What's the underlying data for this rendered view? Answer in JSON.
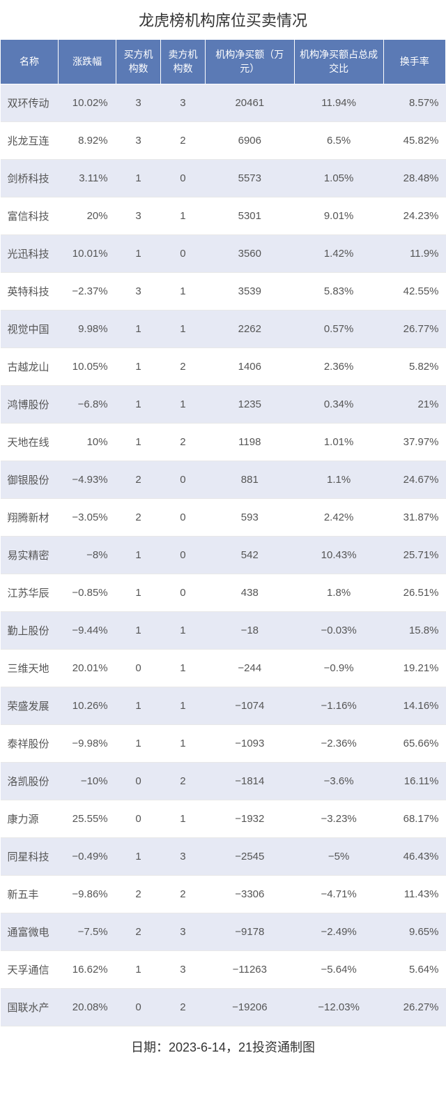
{
  "title": "龙虎榜机构席位买卖情况",
  "footer": "日期：2023-6-14，21投资通制图",
  "colors": {
    "header_bg": "#5b7ab5",
    "header_text": "#ffffff",
    "row_odd_bg": "#e6e9f4",
    "row_even_bg": "#ffffff",
    "cell_text": "#555555",
    "title_text": "#333333",
    "border": "#e8e8e8"
  },
  "table": {
    "columns": [
      {
        "key": "name",
        "label": "名称",
        "width": "13%",
        "align": "left"
      },
      {
        "key": "change",
        "label": "涨跌幅",
        "width": "13%",
        "align": "right"
      },
      {
        "key": "buyers",
        "label": "买方机构数",
        "width": "10%",
        "align": "center"
      },
      {
        "key": "sellers",
        "label": "卖方机构数",
        "width": "10%",
        "align": "center"
      },
      {
        "key": "netbuy",
        "label": "机构净买额（万元）",
        "width": "20%",
        "align": "center"
      },
      {
        "key": "ratio",
        "label": "机构净买额占总成交比",
        "width": "20%",
        "align": "center"
      },
      {
        "key": "turnover",
        "label": "换手率",
        "width": "14%",
        "align": "right"
      }
    ],
    "rows": [
      {
        "name": "双环传动",
        "change": "10.02%",
        "buyers": "3",
        "sellers": "3",
        "netbuy": "20461",
        "ratio": "11.94%",
        "turnover": "8.57%"
      },
      {
        "name": "兆龙互连",
        "change": "8.92%",
        "buyers": "3",
        "sellers": "2",
        "netbuy": "6906",
        "ratio": "6.5%",
        "turnover": "45.82%"
      },
      {
        "name": "剑桥科技",
        "change": "3.11%",
        "buyers": "1",
        "sellers": "0",
        "netbuy": "5573",
        "ratio": "1.05%",
        "turnover": "28.48%"
      },
      {
        "name": "富信科技",
        "change": "20%",
        "buyers": "3",
        "sellers": "1",
        "netbuy": "5301",
        "ratio": "9.01%",
        "turnover": "24.23%"
      },
      {
        "name": "光迅科技",
        "change": "10.01%",
        "buyers": "1",
        "sellers": "0",
        "netbuy": "3560",
        "ratio": "1.42%",
        "turnover": "11.9%"
      },
      {
        "name": "英特科技",
        "change": "−2.37%",
        "buyers": "3",
        "sellers": "1",
        "netbuy": "3539",
        "ratio": "5.83%",
        "turnover": "42.55%"
      },
      {
        "name": "视觉中国",
        "change": "9.98%",
        "buyers": "1",
        "sellers": "1",
        "netbuy": "2262",
        "ratio": "0.57%",
        "turnover": "26.77%"
      },
      {
        "name": "古越龙山",
        "change": "10.05%",
        "buyers": "1",
        "sellers": "2",
        "netbuy": "1406",
        "ratio": "2.36%",
        "turnover": "5.82%"
      },
      {
        "name": "鸿博股份",
        "change": "−6.8%",
        "buyers": "1",
        "sellers": "1",
        "netbuy": "1235",
        "ratio": "0.34%",
        "turnover": "21%"
      },
      {
        "name": "天地在线",
        "change": "10%",
        "buyers": "1",
        "sellers": "2",
        "netbuy": "1198",
        "ratio": "1.01%",
        "turnover": "37.97%"
      },
      {
        "name": "御银股份",
        "change": "−4.93%",
        "buyers": "2",
        "sellers": "0",
        "netbuy": "881",
        "ratio": "1.1%",
        "turnover": "24.67%"
      },
      {
        "name": "翔腾新材",
        "change": "−3.05%",
        "buyers": "2",
        "sellers": "0",
        "netbuy": "593",
        "ratio": "2.42%",
        "turnover": "31.87%"
      },
      {
        "name": "易实精密",
        "change": "−8%",
        "buyers": "1",
        "sellers": "0",
        "netbuy": "542",
        "ratio": "10.43%",
        "turnover": "25.71%"
      },
      {
        "name": "江苏华辰",
        "change": "−0.85%",
        "buyers": "1",
        "sellers": "0",
        "netbuy": "438",
        "ratio": "1.8%",
        "turnover": "26.51%"
      },
      {
        "name": "勤上股份",
        "change": "−9.44%",
        "buyers": "1",
        "sellers": "1",
        "netbuy": "−18",
        "ratio": "−0.03%",
        "turnover": "15.8%"
      },
      {
        "name": "三维天地",
        "change": "20.01%",
        "buyers": "0",
        "sellers": "1",
        "netbuy": "−244",
        "ratio": "−0.9%",
        "turnover": "19.21%"
      },
      {
        "name": "荣盛发展",
        "change": "10.26%",
        "buyers": "1",
        "sellers": "1",
        "netbuy": "−1074",
        "ratio": "−1.16%",
        "turnover": "14.16%"
      },
      {
        "name": "泰祥股份",
        "change": "−9.98%",
        "buyers": "1",
        "sellers": "1",
        "netbuy": "−1093",
        "ratio": "−2.36%",
        "turnover": "65.66%"
      },
      {
        "name": "洛凯股份",
        "change": "−10%",
        "buyers": "0",
        "sellers": "2",
        "netbuy": "−1814",
        "ratio": "−3.6%",
        "turnover": "16.11%"
      },
      {
        "name": "康力源",
        "change": "25.55%",
        "buyers": "0",
        "sellers": "1",
        "netbuy": "−1932",
        "ratio": "−3.23%",
        "turnover": "68.17%"
      },
      {
        "name": "同星科技",
        "change": "−0.49%",
        "buyers": "1",
        "sellers": "3",
        "netbuy": "−2545",
        "ratio": "−5%",
        "turnover": "46.43%"
      },
      {
        "name": "新五丰",
        "change": "−9.86%",
        "buyers": "2",
        "sellers": "2",
        "netbuy": "−3306",
        "ratio": "−4.71%",
        "turnover": "11.43%"
      },
      {
        "name": "通富微电",
        "change": "−7.5%",
        "buyers": "2",
        "sellers": "3",
        "netbuy": "−9178",
        "ratio": "−2.49%",
        "turnover": "9.65%"
      },
      {
        "name": "天孚通信",
        "change": "16.62%",
        "buyers": "1",
        "sellers": "3",
        "netbuy": "−11263",
        "ratio": "−5.64%",
        "turnover": "5.64%"
      },
      {
        "name": "国联水产",
        "change": "20.08%",
        "buyers": "0",
        "sellers": "2",
        "netbuy": "−19206",
        "ratio": "−12.03%",
        "turnover": "26.27%"
      }
    ]
  }
}
